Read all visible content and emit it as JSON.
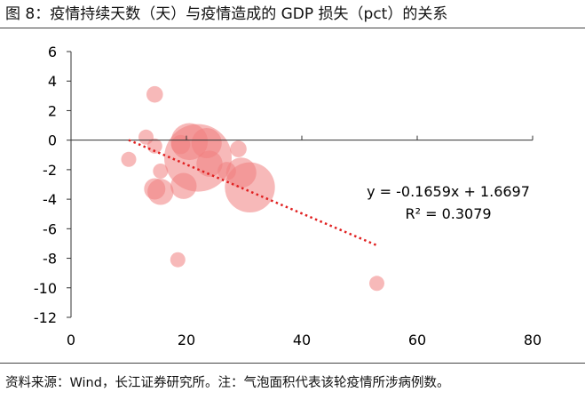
{
  "title": "图 8：疫情持续天数（天）与疫情造成的 GDP 损失（pct）的关系",
  "source": "资料来源：Wind，长江证券研究所。注：气泡面积代表该轮疫情所涉病例数。",
  "chart_data": {
    "type": "scatter",
    "bubble": true,
    "title": "",
    "xlabel": "",
    "ylabel": "",
    "xlim": [
      0,
      80
    ],
    "ylim": [
      -12,
      6
    ],
    "x_ticks": [
      0,
      20,
      40,
      60,
      80
    ],
    "y_ticks": [
      6,
      4,
      2,
      0,
      -2,
      -4,
      -6,
      -8,
      -10,
      -12
    ],
    "grid": false,
    "legend": "none",
    "point_color": "#f08080",
    "trend_color": "#e02020",
    "points": [
      {
        "x": 10,
        "y": -1.3,
        "size": 1
      },
      {
        "x": 13,
        "y": 0.2,
        "size": 1
      },
      {
        "x": 14.5,
        "y": 3.1,
        "size": 1.2
      },
      {
        "x": 14.5,
        "y": -0.4,
        "size": 1
      },
      {
        "x": 15.5,
        "y": -2.1,
        "size": 1
      },
      {
        "x": 14.5,
        "y": -3.3,
        "size": 2
      },
      {
        "x": 15.5,
        "y": -3.5,
        "size": 3
      },
      {
        "x": 18.5,
        "y": -8.1,
        "size": 1
      },
      {
        "x": 19,
        "y": -0.3,
        "size": 1.6
      },
      {
        "x": 19.5,
        "y": -3.1,
        "size": 3
      },
      {
        "x": 20.5,
        "y": -0.1,
        "size": 6
      },
      {
        "x": 22,
        "y": -1.2,
        "size": 20
      },
      {
        "x": 23.5,
        "y": -0.2,
        "size": 4
      },
      {
        "x": 24,
        "y": -1.6,
        "size": 3
      },
      {
        "x": 27,
        "y": -2.1,
        "size": 1.5
      },
      {
        "x": 29,
        "y": -0.6,
        "size": 1.2
      },
      {
        "x": 29.5,
        "y": -2.2,
        "size": 4
      },
      {
        "x": 31,
        "y": -3.2,
        "size": 11
      },
      {
        "x": 53,
        "y": -9.7,
        "size": 1
      }
    ],
    "trendline": {
      "type": "linear",
      "slope": -0.1659,
      "intercept": 1.6697,
      "x_range": [
        10,
        53
      ]
    },
    "annotation": {
      "equation": "y = -0.1659x + 1.6697",
      "r2": "R² = 0.3079"
    }
  }
}
